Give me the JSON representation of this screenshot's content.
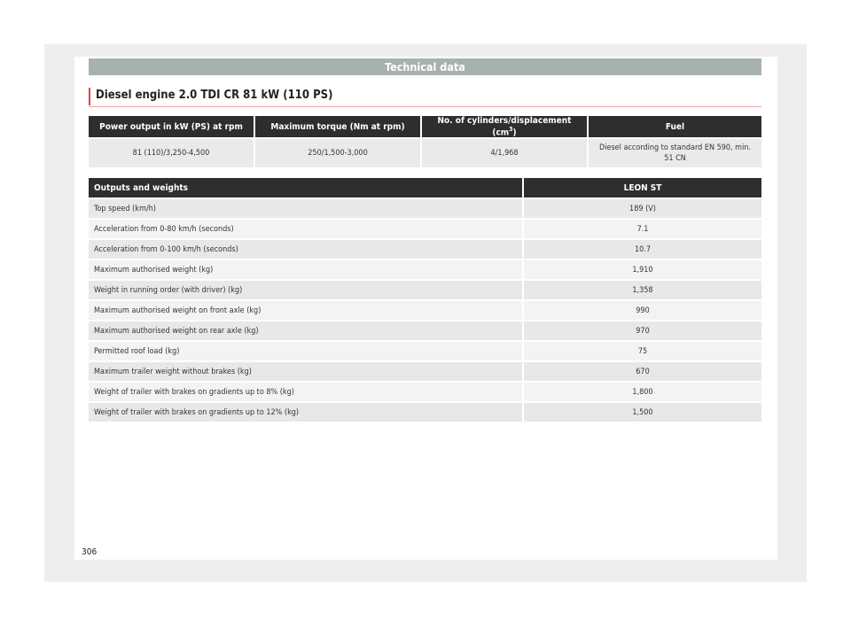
{
  "banner": "Technical data",
  "title": "Diesel engine 2.0 TDI CR 81 kW (110 PS)",
  "engine_table": {
    "headers": [
      "Power output in kW (PS) at rpm",
      "Maximum torque (Nm at rpm)",
      "No. of cylinders/displacement (cm",
      "Fuel"
    ],
    "header3_sup": "3",
    "header3_close": ")",
    "row": [
      "81 (110)/3,250-4,500",
      "250/1,500-3,000",
      "4/1,968",
      "Diesel according to standard EN 590, min. 51 CN"
    ]
  },
  "weights_table": {
    "headers": [
      "Outputs and weights",
      "LEON ST"
    ],
    "rows": [
      [
        "Top speed (km/h)",
        "189 (V)"
      ],
      [
        "Acceleration from 0-80 km/h (seconds)",
        "7.1"
      ],
      [
        "Acceleration from 0-100 km/h (seconds)",
        "10.7"
      ],
      [
        "Maximum authorised weight (kg)",
        "1,910"
      ],
      [
        "Weight in running order (with driver) (kg)",
        "1,358"
      ],
      [
        "Maximum authorised weight on front axle (kg)",
        "990"
      ],
      [
        "Maximum authorised weight on rear axle (kg)",
        "970"
      ],
      [
        "Permitted roof load (kg)",
        "75"
      ],
      [
        "Maximum trailer weight without brakes (kg)",
        "670"
      ],
      [
        "Weight of trailer with brakes on gradients up to 8% (kg)",
        "1,800"
      ],
      [
        "Weight of trailer with brakes on gradients up to 12% (kg)",
        "1,500"
      ]
    ]
  },
  "page_number": "306"
}
